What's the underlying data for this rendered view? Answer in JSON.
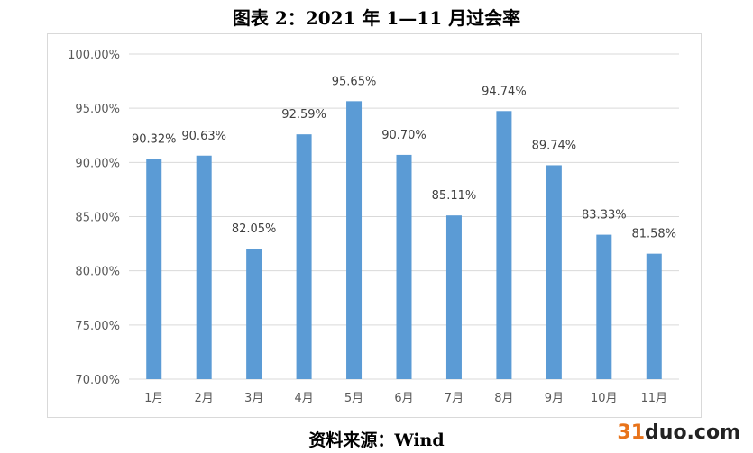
{
  "title": "图表 2：2021 年 1—11 月过会率",
  "source": "资料来源：Wind",
  "watermark": {
    "accent": "31",
    "main": "duo.com"
  },
  "chart_data": {
    "type": "bar",
    "title": "图表 2：2021 年 1—11 月过会率",
    "categories": [
      "1月",
      "2月",
      "3月",
      "4月",
      "5月",
      "6月",
      "7月",
      "8月",
      "9月",
      "10月",
      "11月"
    ],
    "values": [
      90.32,
      90.63,
      82.05,
      92.59,
      95.65,
      90.7,
      85.11,
      94.74,
      89.74,
      83.33,
      81.58
    ],
    "data_labels": [
      "90.32%",
      "90.63%",
      "82.05%",
      "92.59%",
      "95.65%",
      "90.70%",
      "85.11%",
      "94.74%",
      "89.74%",
      "83.33%",
      "81.58%"
    ],
    "ylim": [
      70,
      100
    ],
    "yticks": [
      70,
      75,
      80,
      85,
      90,
      95,
      100
    ],
    "ytick_labels": [
      "70.00%",
      "75.00%",
      "80.00%",
      "85.00%",
      "90.00%",
      "95.00%",
      "100.00%"
    ],
    "xlabel": "",
    "ylabel": "",
    "grid": true,
    "legend": "none",
    "bar_color": "#5b9bd5",
    "grid_color": "#d9d9d9"
  }
}
